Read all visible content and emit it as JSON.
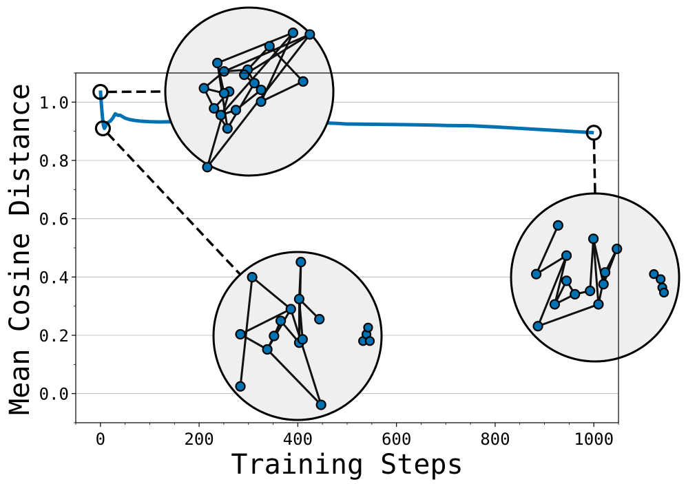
{
  "chart_data": {
    "type": "line",
    "title": "",
    "xlabel": "Training Steps",
    "ylabel": "Mean Cosine Distance",
    "xlim": [
      -50,
      1050
    ],
    "ylim": [
      -0.1,
      1.1
    ],
    "xticks": [
      0,
      200,
      400,
      600,
      800,
      1000
    ],
    "xtick_labels": [
      "0",
      "200",
      "400",
      "600",
      "800",
      "1000"
    ],
    "yticks": [
      0.0,
      0.2,
      0.4,
      0.6,
      0.8,
      1.0
    ],
    "ytick_labels": [
      "0.0",
      "0.2",
      "0.4",
      "0.6",
      "0.8",
      "1.0"
    ],
    "grid": "horizontal",
    "colors": {
      "line": "#0072b2",
      "faint_line": "#b7d3e6",
      "node": "#0072b2",
      "inset_bg": "#efefef"
    },
    "series": [
      {
        "x": [
          0,
          2,
          4,
          6,
          8,
          10,
          12,
          15,
          20,
          25,
          30,
          35,
          40,
          50,
          60,
          70,
          80,
          100,
          120,
          150,
          180,
          200,
          250,
          300,
          350,
          400,
          450,
          480,
          500,
          550,
          600,
          650,
          700,
          750,
          800,
          850,
          900,
          950,
          1000
        ],
        "y": [
          1.04,
          0.99,
          0.95,
          0.92,
          0.91,
          0.915,
          0.925,
          0.93,
          0.935,
          0.945,
          0.96,
          0.955,
          0.955,
          0.945,
          0.94,
          0.937,
          0.935,
          0.933,
          0.932,
          0.933,
          0.931,
          0.932,
          0.93,
          0.93,
          0.929,
          0.928,
          0.929,
          0.927,
          0.925,
          0.924,
          0.923,
          0.922,
          0.92,
          0.919,
          0.915,
          0.91,
          0.905,
          0.9,
          0.895
        ]
      },
      {
        "x": [
          200,
          230,
          260,
          290,
          320,
          350,
          380,
          420,
          450
        ],
        "y": [
          0.927,
          0.928,
          0.925,
          0.922,
          0.92,
          0.921,
          0.923,
          0.925,
          0.926
        ]
      }
    ],
    "markers": [
      {
        "x": 0,
        "y": 1.035
      },
      {
        "x": 5,
        "y": 0.91
      },
      {
        "x": 1000,
        "y": 0.895
      }
    ],
    "insets": [
      {
        "marker": 0,
        "nodes": [
          [
            0.25,
            0.05
          ],
          [
            0.38,
            0.5
          ],
          [
            0.29,
            0.4
          ],
          [
            0.37,
            0.28
          ],
          [
            0.53,
            0.55
          ],
          [
            0.49,
            0.63
          ],
          [
            0.62,
            0.77
          ],
          [
            0.82,
            0.56
          ],
          [
            0.57,
            0.44
          ],
          [
            0.76,
            0.85
          ],
          [
            0.33,
            0.36
          ],
          [
            0.42,
            0.39
          ],
          [
            0.57,
            0.51
          ],
          [
            0.47,
            0.6
          ],
          [
            0.86,
            0.84
          ],
          [
            0.35,
            0.62
          ],
          [
            0.23,
            0.52
          ],
          [
            0.35,
            0.49
          ],
          [
            0.31,
            0.67
          ]
        ],
        "edges": [
          [
            0,
            1
          ],
          [
            1,
            2
          ],
          [
            2,
            3
          ],
          [
            3,
            4
          ],
          [
            4,
            5
          ],
          [
            5,
            6
          ],
          [
            6,
            7
          ],
          [
            7,
            8
          ],
          [
            8,
            9
          ],
          [
            9,
            10
          ],
          [
            10,
            11
          ],
          [
            11,
            12
          ],
          [
            12,
            13
          ],
          [
            13,
            14
          ],
          [
            14,
            15
          ],
          [
            15,
            16
          ],
          [
            16,
            17
          ],
          [
            17,
            18
          ],
          [
            18,
            9
          ],
          [
            0,
            14
          ],
          [
            3,
            18
          ],
          [
            5,
            15
          ],
          [
            2,
            16
          ]
        ]
      },
      {
        "marker": 1,
        "nodes": [
          [
            0.16,
            0.2
          ],
          [
            0.23,
            0.85
          ],
          [
            0.46,
            0.66
          ],
          [
            0.32,
            0.42
          ],
          [
            0.36,
            0.5
          ],
          [
            0.4,
            0.59
          ],
          [
            0.51,
            0.46
          ],
          [
            0.53,
            0.48
          ],
          [
            0.51,
            0.72
          ],
          [
            0.52,
            0.94
          ],
          [
            0.63,
            0.6
          ],
          [
            0.64,
            0.09
          ],
          [
            0.16,
            0.51
          ]
        ],
        "edges": [
          [
            0,
            1
          ],
          [
            1,
            2
          ],
          [
            2,
            3
          ],
          [
            3,
            4
          ],
          [
            4,
            5
          ],
          [
            5,
            6
          ],
          [
            6,
            7
          ],
          [
            7,
            8
          ],
          [
            8,
            9
          ],
          [
            9,
            6
          ],
          [
            6,
            8
          ],
          [
            8,
            10
          ],
          [
            12,
            3
          ],
          [
            3,
            11
          ],
          [
            11,
            2
          ],
          [
            2,
            12
          ]
        ],
        "cluster": [
          [
            0.89,
            0.47
          ],
          [
            0.91,
            0.51
          ],
          [
            0.92,
            0.55
          ],
          [
            0.93,
            0.47
          ]
        ]
      },
      {
        "marker": 2,
        "nodes": [
          [
            0.28,
            0.81
          ],
          [
            0.15,
            0.52
          ],
          [
            0.33,
            0.63
          ],
          [
            0.26,
            0.34
          ],
          [
            0.33,
            0.48
          ],
          [
            0.38,
            0.4
          ],
          [
            0.47,
            0.42
          ],
          [
            0.49,
            0.73
          ],
          [
            0.55,
            0.46
          ],
          [
            0.63,
            0.67
          ],
          [
            0.56,
            0.53
          ],
          [
            0.52,
            0.34
          ],
          [
            0.16,
            0.21
          ]
        ],
        "edges": [
          [
            0,
            1
          ],
          [
            1,
            2
          ],
          [
            2,
            3
          ],
          [
            3,
            4
          ],
          [
            4,
            5
          ],
          [
            5,
            6
          ],
          [
            6,
            7
          ],
          [
            7,
            8
          ],
          [
            8,
            9
          ],
          [
            9,
            10
          ],
          [
            10,
            11
          ],
          [
            11,
            12
          ],
          [
            12,
            2
          ],
          [
            5,
            3
          ],
          [
            7,
            11
          ]
        ],
        "cluster": [
          [
            0.85,
            0.52
          ],
          [
            0.89,
            0.49
          ],
          [
            0.9,
            0.44
          ],
          [
            0.91,
            0.41
          ]
        ]
      }
    ]
  }
}
